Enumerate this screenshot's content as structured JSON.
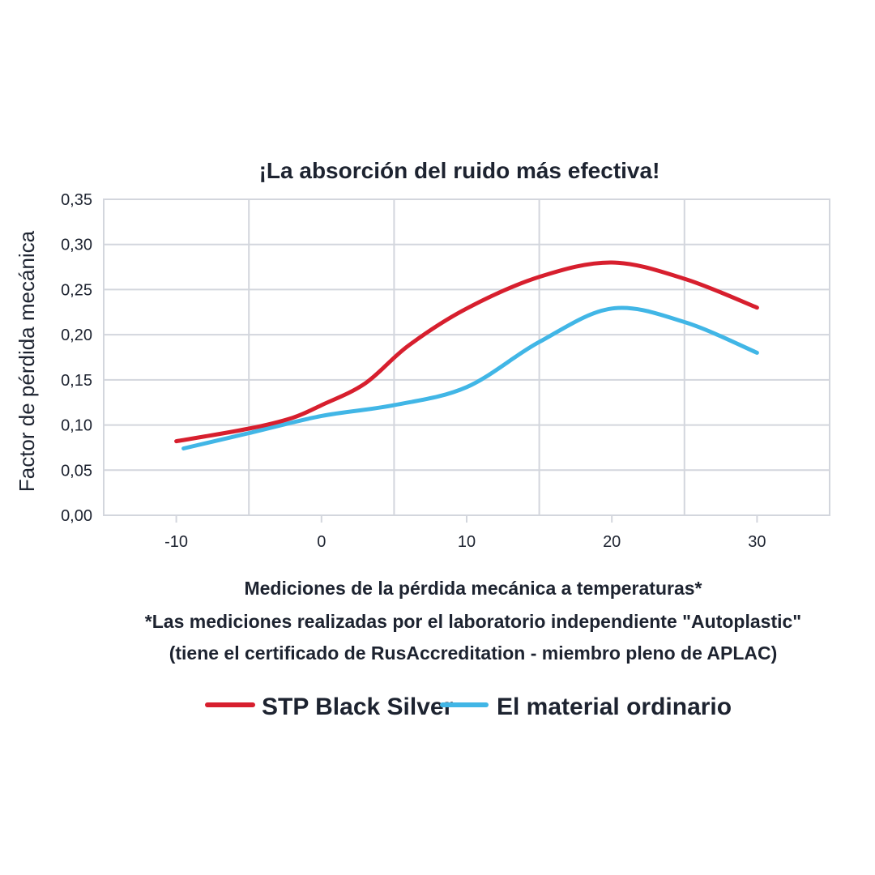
{
  "chart_data": {
    "type": "line",
    "title": "¡La absorción del ruido más efectiva!",
    "xlabel": "Mediciones de la pérdida mecánica a temperaturas*",
    "ylabel": "Factor de pérdida mecánica",
    "notes": [
      "*Las mediciones realizadas por el laboratorio independiente \"Autoplastic\"",
      "(tiene el certificado de RusAccreditation - miembro pleno de APLAC)"
    ],
    "xlim": [
      -15,
      35
    ],
    "ylim": [
      0,
      0.35
    ],
    "x_ticks": [
      -10,
      0,
      10,
      20,
      30
    ],
    "x_tick_labels": [
      "-10",
      "0",
      "10",
      "20",
      "30"
    ],
    "x_grid": [
      -15,
      -5,
      5,
      15,
      25,
      35
    ],
    "y_ticks": [
      0,
      0.05,
      0.1,
      0.15,
      0.2,
      0.25,
      0.3,
      0.35
    ],
    "y_tick_labels": [
      "0,00",
      "0,05",
      "0,10",
      "0,15",
      "0,20",
      "0,25",
      "0,30",
      "0,35"
    ],
    "grid": true,
    "legend_position": "bottom",
    "series": [
      {
        "name": "STP Black Silver",
        "color": "#d71f2e",
        "x": [
          -10,
          -5,
          -2,
          0,
          3,
          6,
          10,
          15,
          20,
          25,
          30
        ],
        "y": [
          0.082,
          0.096,
          0.108,
          0.122,
          0.146,
          0.188,
          0.229,
          0.264,
          0.28,
          0.262,
          0.23
        ]
      },
      {
        "name": "El material ordinario",
        "color": "#41b6e6",
        "x": [
          -9.5,
          -5,
          0,
          5,
          10,
          15,
          20,
          25,
          30
        ],
        "y": [
          0.074,
          0.091,
          0.11,
          0.122,
          0.142,
          0.192,
          0.229,
          0.214,
          0.18
        ]
      }
    ]
  }
}
